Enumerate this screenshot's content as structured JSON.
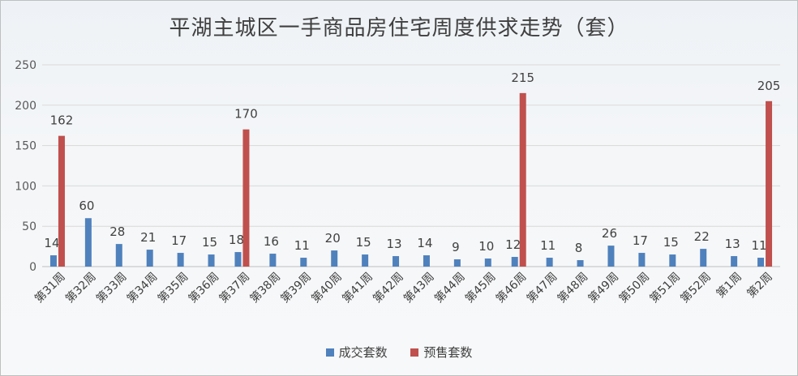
{
  "chart_data": {
    "type": "bar",
    "title": "平湖主城区一手商品房住宅周度供求走势（套）",
    "categories": [
      "第31周",
      "第32周",
      "第33周",
      "第34周",
      "第35周",
      "第36周",
      "第37周",
      "第38周",
      "第39周",
      "第40周",
      "第41周",
      "第42周",
      "第43周",
      "第44周",
      "第45周",
      "第46周",
      "第47周",
      "第48周",
      "第49周",
      "第50周",
      "第51周",
      "第52周",
      "第1周",
      "第2周"
    ],
    "series": [
      {
        "name": "成交套数",
        "color": "#4f81bd",
        "values": [
          14,
          60,
          28,
          21,
          17,
          15,
          18,
          16,
          11,
          20,
          15,
          13,
          14,
          9,
          10,
          12,
          11,
          8,
          26,
          17,
          15,
          22,
          13,
          11
        ]
      },
      {
        "name": "预售套数",
        "color": "#c0504d",
        "values": [
          162,
          null,
          null,
          null,
          null,
          null,
          170,
          null,
          null,
          null,
          null,
          null,
          null,
          null,
          null,
          215,
          null,
          null,
          null,
          null,
          null,
          null,
          null,
          205
        ]
      }
    ],
    "ylim": [
      0,
      250
    ],
    "yticks": [
      0,
      50,
      100,
      150,
      200,
      250
    ],
    "grid": true,
    "legend_position": "bottom"
  }
}
